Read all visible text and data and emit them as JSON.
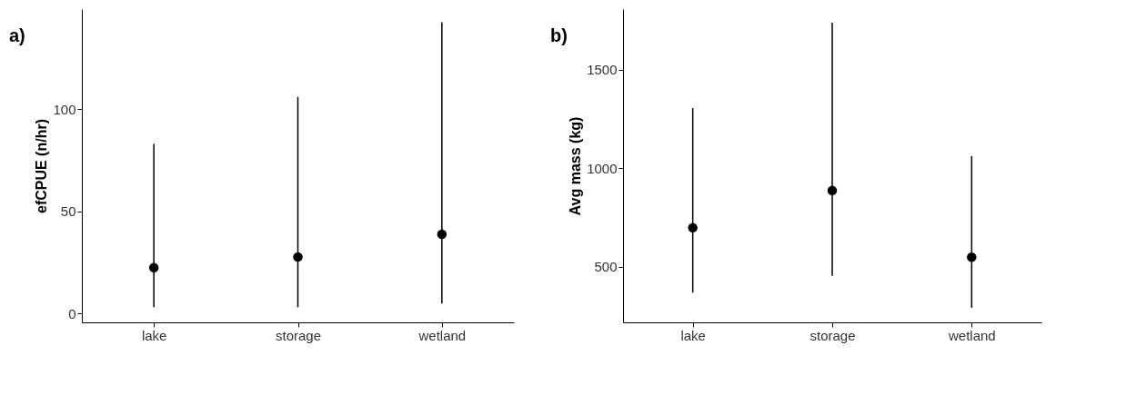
{
  "chart_data": [
    {
      "type": "scatter",
      "title": "a)",
      "ylabel": "efCPUE (n/hr)",
      "categories": [
        "lake",
        "storage",
        "wetland"
      ],
      "values": [
        22.4,
        27.6,
        38.7
      ],
      "errors": [
        [
          3,
          83
        ],
        [
          3,
          106
        ],
        [
          4.8,
          142.5
        ]
      ],
      "color": "#000000",
      "marker": "circle",
      "ylim": [
        -4.4,
        149
      ],
      "yticks": [
        0,
        50,
        100
      ],
      "grid": false
    },
    {
      "type": "scatter",
      "title": "b)",
      "ylabel": "Avg mass (kg)",
      "categories": [
        "lake",
        "storage",
        "wetland"
      ],
      "values": [
        698,
        887,
        549
      ],
      "errors": [
        [
          369,
          1305
        ],
        [
          454,
          1739
        ],
        [
          292,
          1062
        ]
      ],
      "color": "#000000",
      "marker": "circle",
      "ylim": [
        218,
        1808
      ],
      "yticks": [
        500,
        1000,
        1500
      ],
      "grid": false
    }
  ]
}
